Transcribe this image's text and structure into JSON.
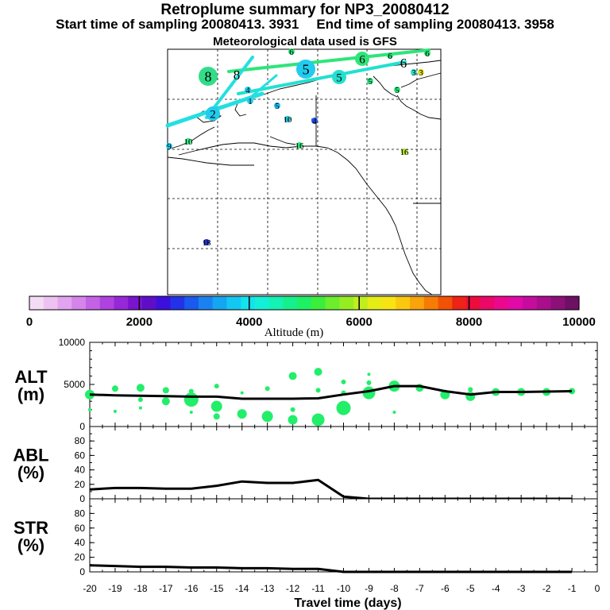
{
  "header": {
    "title": "Retroplume summary for NP3_20080412",
    "start_label": "Start time of sampling 20080413.  3931",
    "end_label": "End time of sampling 20080413.  3958",
    "met_label": "Meteorological data used is GFS"
  },
  "map": {
    "labels": [
      {
        "text": "8",
        "color": "#33dd88",
        "size": "big"
      },
      {
        "text": "8",
        "color": "#2ee57a",
        "size": "plain"
      },
      {
        "text": "5",
        "color": "#22ccee",
        "size": "big"
      },
      {
        "text": "5",
        "color": "#22e0d0",
        "size": "mid"
      },
      {
        "text": "6",
        "color": "#2ee57a",
        "size": "mid"
      },
      {
        "text": "6",
        "color": "#2ee57a",
        "size": "plain"
      },
      {
        "text": "6",
        "color": "#2ee57a",
        "size": "small"
      },
      {
        "text": "6",
        "color": "#2ee57a",
        "size": "small"
      },
      {
        "text": "6",
        "color": "#2ee57a",
        "size": "small"
      },
      {
        "text": "5",
        "color": "#2ee57a",
        "size": "small"
      },
      {
        "text": "5",
        "color": "#2ee57a",
        "size": "small"
      },
      {
        "text": "4",
        "color": "#22ccee",
        "size": "small"
      },
      {
        "text": "3",
        "color": "#33ddcc",
        "size": "small"
      },
      {
        "text": "3",
        "color": "#dddd22",
        "size": "small"
      },
      {
        "text": "2",
        "color": "#22ccee",
        "size": "mid"
      },
      {
        "text": "1",
        "color": "#22ccee",
        "size": "small"
      },
      {
        "text": "5",
        "color": "#22bbee",
        "size": "small"
      },
      {
        "text": "10",
        "color": "#22bbcc",
        "size": "small"
      },
      {
        "text": "4",
        "color": "#2255ee",
        "size": "small"
      },
      {
        "text": "9",
        "color": "#22ccee",
        "size": "small"
      },
      {
        "text": "10",
        "color": "#2ee57a",
        "size": "small"
      },
      {
        "text": "16",
        "color": "#2ee57a",
        "size": "small"
      },
      {
        "text": "16",
        "color": "#aadd22",
        "size": "small"
      },
      {
        "text": "18",
        "color": "#2233cc",
        "size": "small"
      }
    ]
  },
  "colorbar": {
    "ticks": [
      "0",
      "2000",
      "4000",
      "6000",
      "8000",
      "10000"
    ],
    "label": "Altitude (m)",
    "colors": [
      "#f4dcf4",
      "#eec2f0",
      "#e2a4ee",
      "#d484ea",
      "#c462e6",
      "#b042e0",
      "#9628d8",
      "#7a14d0",
      "#5f0ec8",
      "#3c10dc",
      "#2232e8",
      "#1a5aee",
      "#1a82f0",
      "#14a6f2",
      "#12c8f2",
      "#14e2ee",
      "#14f0d8",
      "#14f2b4",
      "#16f08c",
      "#1ef064",
      "#3cee3c",
      "#6cee2c",
      "#96ee22",
      "#c0ee1e",
      "#e4ee16",
      "#f8e414",
      "#fac80e",
      "#f8a40a",
      "#f67c06",
      "#f25206",
      "#ee2216",
      "#ec0c3e",
      "#ec0868",
      "#ec088e",
      "#e00aa8",
      "#c60c9e",
      "#aa0e8c",
      "#8c1078",
      "#6e1064"
    ]
  },
  "chart_data": [
    {
      "type": "line",
      "name": "ALT",
      "ylabel": "ALT\n(m)",
      "ylim": [
        0,
        10000
      ],
      "yticks": [
        "10000",
        "5000",
        "0"
      ],
      "x": [
        -20,
        -19,
        -18,
        -17,
        -16,
        -15,
        -14,
        -13,
        -12,
        -11,
        -10,
        -9,
        -8,
        -7,
        -6,
        -5,
        -4,
        -3,
        -2,
        -1
      ],
      "values": [
        3800,
        3700,
        3650,
        3600,
        3550,
        3550,
        3300,
        3300,
        3300,
        3350,
        3800,
        4200,
        4800,
        4800,
        4200,
        3800,
        4100,
        4100,
        4150,
        4200
      ],
      "plume_points": [
        {
          "x": -20,
          "y": 3800,
          "r": 6
        },
        {
          "x": -20,
          "y": 2000,
          "r": 2
        },
        {
          "x": -19,
          "y": 4500,
          "r": 4
        },
        {
          "x": -19,
          "y": 1800,
          "r": 2
        },
        {
          "x": -18,
          "y": 4600,
          "r": 5
        },
        {
          "x": -18,
          "y": 3200,
          "r": 3
        },
        {
          "x": -18,
          "y": 2200,
          "r": 2
        },
        {
          "x": -17,
          "y": 4300,
          "r": 4
        },
        {
          "x": -17,
          "y": 3000,
          "r": 5
        },
        {
          "x": -16,
          "y": 4200,
          "r": 3
        },
        {
          "x": -16,
          "y": 3200,
          "r": 9
        },
        {
          "x": -16,
          "y": 1700,
          "r": 2
        },
        {
          "x": -15,
          "y": 4800,
          "r": 3
        },
        {
          "x": -15,
          "y": 2400,
          "r": 7
        },
        {
          "x": -15,
          "y": 1200,
          "r": 4
        },
        {
          "x": -14,
          "y": 1500,
          "r": 6
        },
        {
          "x": -14,
          "y": 4000,
          "r": 2
        },
        {
          "x": -13,
          "y": 4500,
          "r": 3
        },
        {
          "x": -13,
          "y": 1200,
          "r": 7
        },
        {
          "x": -12,
          "y": 6000,
          "r": 5
        },
        {
          "x": -12,
          "y": 2000,
          "r": 3
        },
        {
          "x": -12,
          "y": 800,
          "r": 6
        },
        {
          "x": -11,
          "y": 6500,
          "r": 5
        },
        {
          "x": -11,
          "y": 4300,
          "r": 3
        },
        {
          "x": -11,
          "y": 800,
          "r": 8
        },
        {
          "x": -10,
          "y": 2200,
          "r": 9
        },
        {
          "x": -10,
          "y": 4000,
          "r": 3
        },
        {
          "x": -10,
          "y": 5300,
          "r": 3
        },
        {
          "x": -9,
          "y": 4000,
          "r": 8
        },
        {
          "x": -9,
          "y": 5200,
          "r": 3
        },
        {
          "x": -9,
          "y": 6200,
          "r": 2
        },
        {
          "x": -8,
          "y": 4800,
          "r": 7
        },
        {
          "x": -8,
          "y": 1700,
          "r": 2
        },
        {
          "x": -7,
          "y": 4600,
          "r": 5
        },
        {
          "x": -6,
          "y": 3800,
          "r": 6
        },
        {
          "x": -5,
          "y": 3600,
          "r": 6
        },
        {
          "x": -5,
          "y": 4400,
          "r": 3
        },
        {
          "x": -4,
          "y": 4100,
          "r": 5
        },
        {
          "x": -3,
          "y": 4100,
          "r": 5
        },
        {
          "x": -2,
          "y": 4100,
          "r": 5
        },
        {
          "x": -1,
          "y": 4200,
          "r": 4
        }
      ]
    },
    {
      "type": "line",
      "name": "ABL",
      "ylabel": "ABL\n(%)",
      "ylim": [
        0,
        100
      ],
      "yticks": [
        "80",
        "60",
        "40",
        "20",
        "0"
      ],
      "x": [
        -20,
        -19,
        -18,
        -17,
        -16,
        -15,
        -14,
        -13,
        -12,
        -11,
        -10,
        -9,
        -8,
        -7,
        -6,
        -5,
        -4,
        -3,
        -2,
        -1
      ],
      "values": [
        13,
        15,
        15,
        14,
        14,
        18,
        24,
        22,
        22,
        26,
        3,
        0,
        0,
        0,
        0,
        0,
        0,
        0,
        0,
        0
      ]
    },
    {
      "type": "line",
      "name": "STR",
      "ylabel": "STR\n(%)",
      "ylim": [
        0,
        100
      ],
      "yticks": [
        "80",
        "60",
        "40",
        "20",
        "0"
      ],
      "x": [
        -20,
        -19,
        -18,
        -17,
        -16,
        -15,
        -14,
        -13,
        -12,
        -11,
        -10,
        -9,
        -8,
        -7,
        -6,
        -5,
        -4,
        -3,
        -2,
        -1
      ],
      "values": [
        9,
        8,
        7,
        7,
        6,
        6,
        5,
        5,
        4,
        4,
        0,
        0,
        0,
        0,
        0,
        0,
        0,
        0,
        0,
        0
      ]
    }
  ],
  "xaxis": {
    "label": "Travel time (days)",
    "ticks": [
      "-20",
      "-19",
      "-18",
      "-17",
      "-16",
      "-15",
      "-14",
      "-13",
      "-12",
      "-11",
      "-10",
      "-9",
      "-8",
      "-7",
      "-6",
      "-5",
      "-4",
      "-3",
      "-2",
      "-1",
      "0"
    ]
  }
}
